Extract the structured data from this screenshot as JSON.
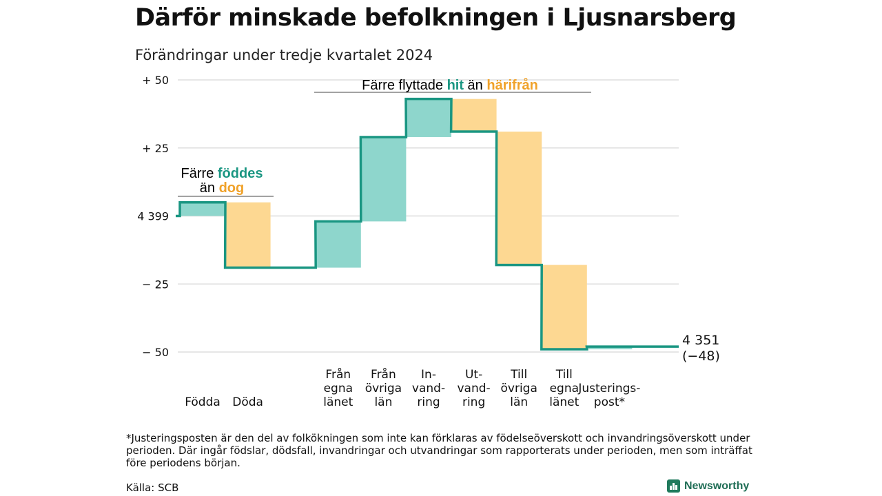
{
  "header": {
    "title": "Därför minskade befolkningen i Ljusnarsberg",
    "subtitle": "Förändringar under tredje kvartalet 2024"
  },
  "colors": {
    "teal": "#1a9682",
    "teal_fill": "#8ed6cc",
    "orange_fill": "#fdd892",
    "orange_text": "#f0a22a",
    "grid": "#dddddd"
  },
  "annotations": {
    "births": {
      "line1_pre": "Färre ",
      "line1_hl": "föddes",
      "line2_pre": "än ",
      "line2_hl": "dog"
    },
    "moves": {
      "pre": "Färre flyttade ",
      "hl1": "hit",
      "mid": " än ",
      "hl2": "härifrån"
    }
  },
  "chart_data": {
    "type": "waterfall",
    "title": "Därför minskade befolkningen i Ljusnarsberg",
    "subtitle": "Förändringar under tredje kvartalet 2024",
    "start_value": 4399,
    "start_label": "4 399",
    "end_value": 4351,
    "end_label": "4 351",
    "end_change_label": "(−48)",
    "y_ticks": [
      {
        "value": 50,
        "label": "+ 50"
      },
      {
        "value": 25,
        "label": "+ 25"
      },
      {
        "value": 0,
        "label": "4 399"
      },
      {
        "value": -25,
        "label": "− 25"
      },
      {
        "value": -50,
        "label": "− 50"
      }
    ],
    "ylim": [
      -50,
      50
    ],
    "steps": [
      {
        "label": [
          "Födda"
        ],
        "value": 5,
        "direction": "up"
      },
      {
        "label": [
          "Döda"
        ],
        "value": -24,
        "direction": "down"
      },
      {
        "label": [],
        "value": 0,
        "direction": "none"
      },
      {
        "label": [
          "Från",
          "egna",
          "länet"
        ],
        "value": 17,
        "direction": "up"
      },
      {
        "label": [
          "Från",
          "övriga",
          "län"
        ],
        "value": 31,
        "direction": "up"
      },
      {
        "label": [
          "In-",
          "vand-",
          "ring"
        ],
        "value": 14,
        "direction": "up"
      },
      {
        "label": [
          "Ut-",
          "vand-",
          "ring"
        ],
        "value": -12,
        "direction": "down"
      },
      {
        "label": [
          "Till",
          "övriga",
          "län"
        ],
        "value": -49,
        "direction": "down"
      },
      {
        "label": [
          "Till",
          "egna",
          "länet"
        ],
        "value": -31,
        "direction": "down"
      },
      {
        "label": [
          "Justerings-",
          "post*"
        ],
        "value": 1,
        "direction": "up"
      }
    ]
  },
  "footer": {
    "footnote": "*Justeringsposten är den del av folkökningen som inte kan förklaras av födelseöverskott och invandringsöverskott under perioden. Där ingår födslar, dödsfall, invandringar och utvandringar som rapporterats under perioden, men som inträffat före periodens början.",
    "source": "Källa: SCB",
    "brand": "Newsworthy"
  }
}
